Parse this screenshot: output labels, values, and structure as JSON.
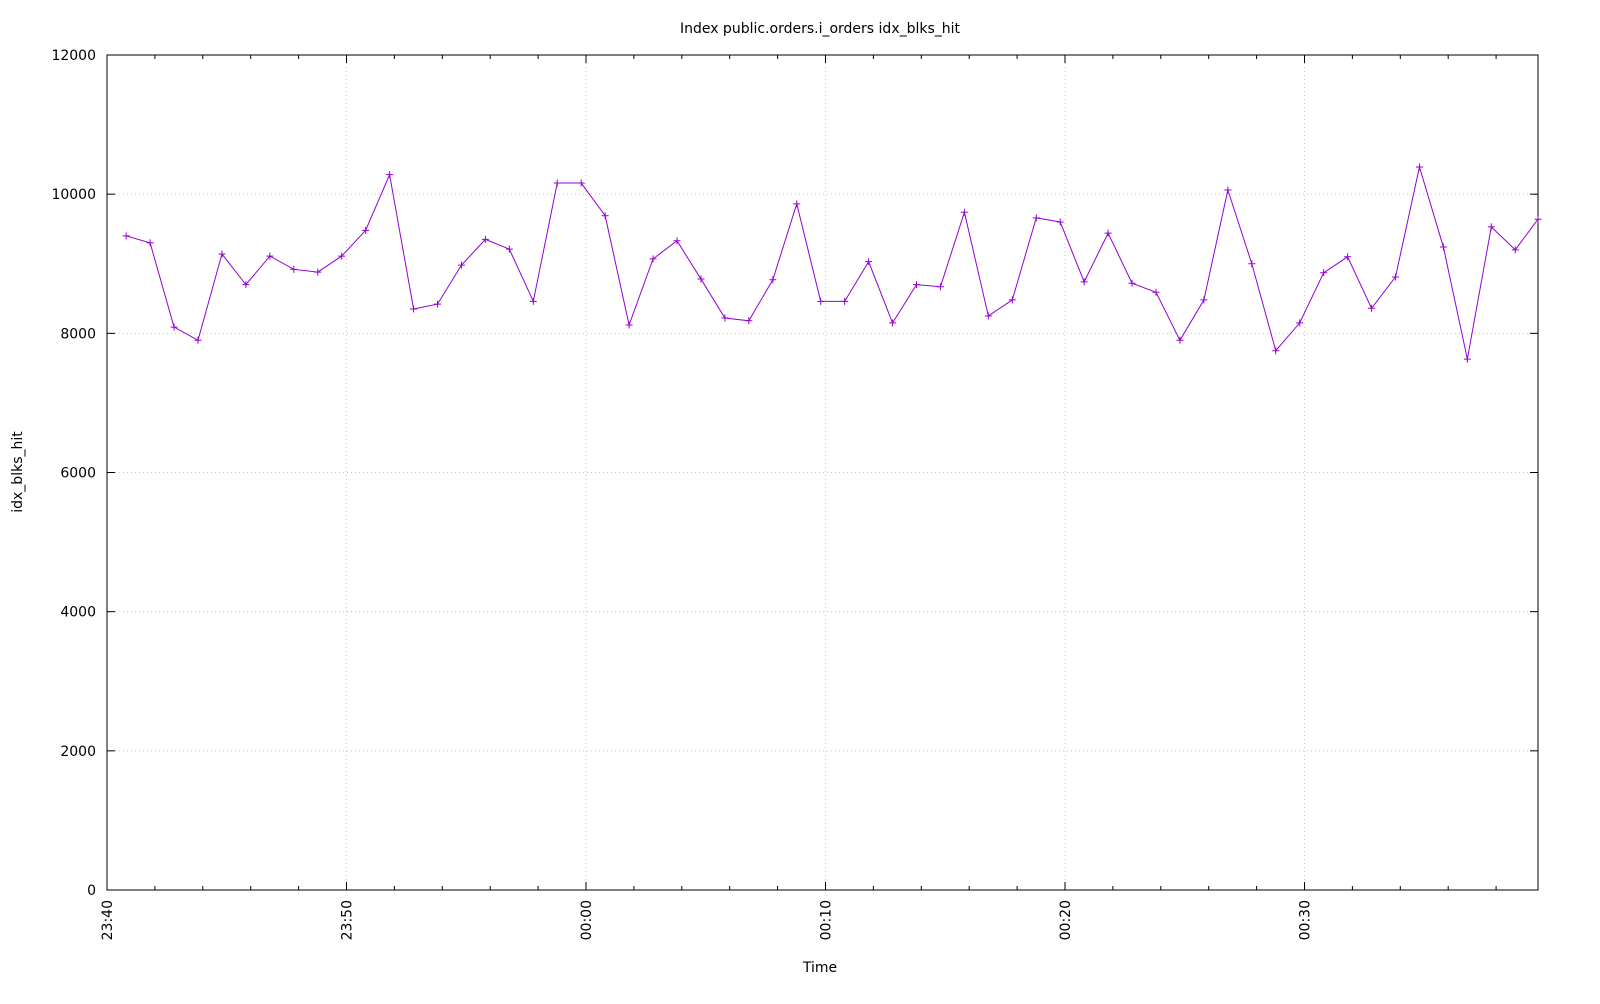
{
  "chart_data": {
    "type": "line",
    "title": "Index public.orders.i_orders idx_blks_hit",
    "xlabel": "Time",
    "ylabel": "idx_blks_hit",
    "ylim": [
      0,
      12000
    ],
    "yticks": [
      "0",
      "2000",
      "4000",
      "6000",
      "8000",
      "10000",
      "12000"
    ],
    "xlim": [
      "23:40:00",
      "00:39:45"
    ],
    "xticks": [
      "23:40",
      "23:50",
      "00:00",
      "00:10",
      "00:20",
      "00:30"
    ],
    "grid": true,
    "line_color": "#9400d3",
    "marker": "plus",
    "series": [
      {
        "x": [
          "23:40:48",
          "23:41:48",
          "23:42:48",
          "23:43:48",
          "23:44:48",
          "23:45:48",
          "23:46:48",
          "23:47:48",
          "23:48:48",
          "23:49:48",
          "23:50:48",
          "23:51:48",
          "23:52:48",
          "23:53:48",
          "23:54:48",
          "23:55:48",
          "23:56:48",
          "23:57:48",
          "23:58:48",
          "23:59:48",
          "00:00:48",
          "00:01:48",
          "00:02:48",
          "00:03:48",
          "00:04:48",
          "00:05:48",
          "00:06:48",
          "00:07:48",
          "00:08:48",
          "00:09:48",
          "00:10:48",
          "00:11:48",
          "00:12:48",
          "00:13:48",
          "00:14:48",
          "00:15:48",
          "00:16:48",
          "00:17:48",
          "00:18:48",
          "00:19:48",
          "00:20:48",
          "00:21:48",
          "00:22:48",
          "00:23:48",
          "00:24:48",
          "00:25:48",
          "00:26:48",
          "00:27:48",
          "00:28:48",
          "00:29:48",
          "00:30:48",
          "00:31:48",
          "00:32:48",
          "00:33:48",
          "00:34:48",
          "00:35:48",
          "00:36:48",
          "00:37:48",
          "00:38:48",
          "00:39:48"
        ],
        "values": [
          9400,
          9300,
          8090,
          7900,
          9140,
          8700,
          9110,
          8920,
          8880,
          9110,
          9480,
          10280,
          8350,
          8420,
          8980,
          9350,
          9210,
          8460,
          10160,
          10160,
          9690,
          8120,
          9070,
          9330,
          8780,
          8220,
          8180,
          8770,
          9860,
          8460,
          8460,
          9030,
          8150,
          8700,
          8670,
          9740,
          8250,
          8480,
          9660,
          9600,
          8740,
          9440,
          8720,
          8590,
          7900,
          8480,
          10060,
          9000,
          7750,
          8150,
          8870,
          9100,
          8360,
          8810,
          10390,
          9240,
          7630,
          9530,
          9200,
          9640
        ]
      }
    ]
  }
}
